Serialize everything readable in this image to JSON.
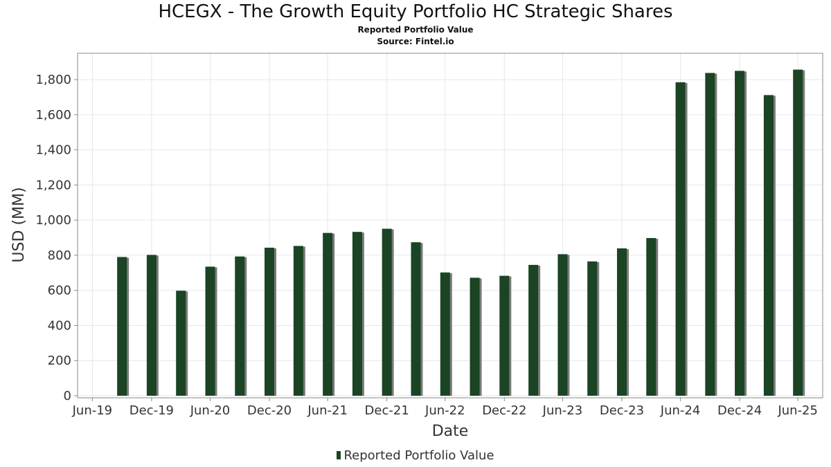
{
  "header": {
    "title": "HCEGX - The Growth Equity Portfolio HC Strategic Shares",
    "subtitle": "Reported Portfolio Value",
    "source": "Source: Fintel.io"
  },
  "colors": {
    "bar": "#1a4424",
    "bar_shadow": "#7a7a7a",
    "grid": "#e6e6e6",
    "plot_border": "#888888"
  },
  "chart_data": {
    "type": "bar",
    "title": "HCEGX - The Growth Equity Portfolio HC Strategic Shares",
    "xlabel": "Date",
    "ylabel": "USD (MM)",
    "ylim": [
      0,
      1950
    ],
    "y_ticks": [
      0,
      200,
      400,
      600,
      800,
      1000,
      1200,
      1400,
      1600,
      1800
    ],
    "y_tick_labels": [
      "0",
      "200",
      "400",
      "600",
      "800",
      "1,000",
      "1,200",
      "1,400",
      "1,600",
      "1,800"
    ],
    "x_range": [
      "2019-05-15",
      "2025-09-15"
    ],
    "x_ticks": [
      "2019-06-30",
      "2019-12-31",
      "2020-06-30",
      "2020-12-31",
      "2021-06-30",
      "2021-12-31",
      "2022-06-30",
      "2022-12-31",
      "2023-06-30",
      "2023-12-31",
      "2024-06-30",
      "2024-12-31",
      "2025-06-30"
    ],
    "x_tick_labels": [
      "Jun-19",
      "Dec-19",
      "Jun-20",
      "Dec-20",
      "Jun-21",
      "Dec-21",
      "Jun-22",
      "Dec-22",
      "Jun-23",
      "Dec-23",
      "Jun-24",
      "Dec-24",
      "Jun-25"
    ],
    "grid": true,
    "legend_position": "bottom-center",
    "series": [
      {
        "name": "Reported Portfolio Value",
        "x": [
          "2019-09-30",
          "2019-12-31",
          "2020-03-31",
          "2020-06-30",
          "2020-09-30",
          "2020-12-31",
          "2021-03-31",
          "2021-06-30",
          "2021-09-30",
          "2021-12-31",
          "2022-03-31",
          "2022-06-30",
          "2022-09-30",
          "2022-12-31",
          "2023-03-31",
          "2023-06-30",
          "2023-09-30",
          "2023-12-31",
          "2024-03-31",
          "2024-06-30",
          "2024-09-30",
          "2024-12-31",
          "2025-03-31",
          "2025-06-30"
        ],
        "values": [
          790,
          802,
          598,
          735,
          793,
          843,
          853,
          927,
          933,
          951,
          874,
          702,
          672,
          683,
          745,
          806,
          765,
          839,
          898,
          1785,
          1838,
          1850,
          1712,
          1857
        ]
      }
    ]
  },
  "legend": {
    "label": "Reported Portfolio Value"
  }
}
